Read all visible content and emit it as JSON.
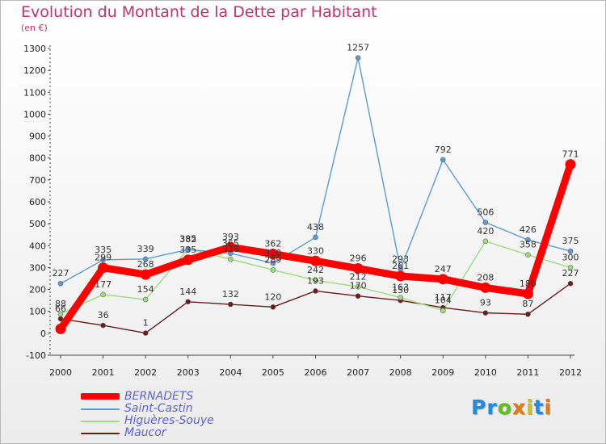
{
  "title": "Evolution du Montant de la Dette par Habitant",
  "subtitle": "(en €)",
  "brand": "Proxiti",
  "brand_colors": [
    "#1b8de3",
    "#1b8de3",
    "#5fbf1e",
    "#e27b10",
    "#d1c21f",
    "#1b8de3",
    "#e27b10"
  ],
  "chart_data": {
    "type": "line",
    "categories": [
      "2000",
      "2001",
      "2002",
      "2003",
      "2004",
      "2005",
      "2006",
      "2007",
      "2008",
      "2009",
      "2010",
      "2011",
      "2012"
    ],
    "y_ticks": [
      "-100",
      "0",
      "100",
      "200",
      "300",
      "400",
      "500",
      "600",
      "700",
      "800",
      "900",
      "1000",
      "1100",
      "1200",
      "1300"
    ],
    "ylim": [
      -100,
      1300
    ],
    "grid": false,
    "legend_position": "bottom-left",
    "series": [
      {
        "name": "BERNADETS",
        "color": "#ff0000",
        "values": [
          20,
          299,
          268,
          335,
          393,
          362,
          330,
          296,
          261,
          247,
          208,
          180,
          771
        ],
        "labels": [
          "",
          "299",
          "268",
          "335",
          "393",
          "362",
          "330",
          "296",
          "261",
          "247",
          "208",
          "180",
          "771"
        ]
      },
      {
        "name": "Saint-Castin",
        "color": "#5b9bd5",
        "values": [
          227,
          335,
          339,
          382,
          365,
          320,
          438,
          1257,
          293,
          792,
          506,
          426,
          375
        ],
        "labels": [
          "227",
          "335",
          "339",
          "382",
          "365",
          "320",
          "438",
          "1257",
          "293",
          "792",
          "506",
          "426",
          "375"
        ]
      },
      {
        "name": "Higuères-Souye",
        "color": "#99e07a",
        "values": [
          88,
          177,
          154,
          385,
          338,
          289,
          242,
          212,
          163,
          104,
          420,
          358,
          300
        ],
        "labels": [
          "88",
          "177",
          "154",
          "385",
          "338",
          "289",
          "242",
          "212",
          "163",
          "104",
          "420",
          "358",
          "300"
        ]
      },
      {
        "name": "Maucor",
        "color": "#6b1a1a",
        "values": [
          66,
          36,
          1,
          144,
          132,
          120,
          193,
          170,
          150,
          117,
          93,
          87,
          227
        ],
        "labels": [
          "66",
          "36",
          "1",
          "144",
          "132",
          "120",
          "193",
          "170",
          "150",
          "117",
          "93",
          "87",
          "227"
        ]
      }
    ]
  }
}
